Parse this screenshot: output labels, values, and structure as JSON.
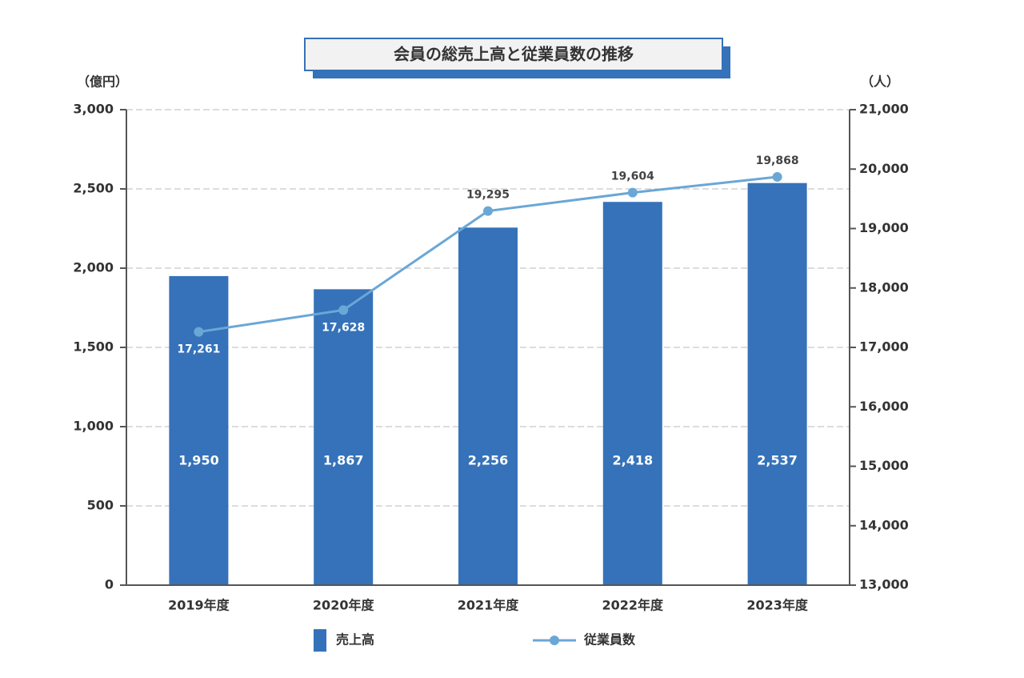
{
  "chart_data": {
    "type": "bar_line",
    "title": "会員の総売上高と従業員数の推移",
    "y_label": "（億円）",
    "y2_label": "（人）",
    "categories": [
      "2019年度",
      "2020年度",
      "2021年度",
      "2022年度",
      "2023年度"
    ],
    "series": [
      {
        "name": "売上高",
        "type": "bar",
        "color": "#3572b9",
        "values": [
          1950,
          1867,
          2256,
          2418,
          2537
        ],
        "value_labels": [
          "1,950",
          "1,867",
          "2,256",
          "2,418",
          "2,537"
        ]
      },
      {
        "name": "従業員数",
        "type": "line",
        "axis": "y2",
        "color": "#6aa7d6",
        "values": [
          17261,
          17628,
          19295,
          19604,
          19868
        ],
        "value_labels": [
          "17,261",
          "17,628",
          "19,295",
          "19,604",
          "19,868"
        ]
      }
    ],
    "ylim": [
      0,
      3000
    ],
    "yticks": [
      0,
      500,
      {
        "value": 1000,
        "label": "1,000"
      },
      {
        "value": 1500,
        "label": "1,500"
      },
      {
        "value": 2000,
        "label": "2,000"
      },
      {
        "value": 2500,
        "label": "2,500"
      },
      {
        "value": 3000,
        "label": "3,000"
      }
    ],
    "y2lim": [
      13000,
      21000
    ],
    "y2ticks": [
      {
        "value": 13000,
        "label": "13,000"
      },
      {
        "value": 14000,
        "label": "14,000"
      },
      {
        "value": 15000,
        "label": "15,000"
      },
      {
        "value": 16000,
        "label": "16,000"
      },
      {
        "value": 17000,
        "label": "17,000"
      },
      {
        "value": 18000,
        "label": "18,000"
      },
      {
        "value": 19000,
        "label": "19,000"
      },
      {
        "value": 20000,
        "label": "20,000"
      },
      {
        "value": 21000,
        "label": "21,000"
      }
    ],
    "grid": true,
    "legend": "bottom"
  }
}
